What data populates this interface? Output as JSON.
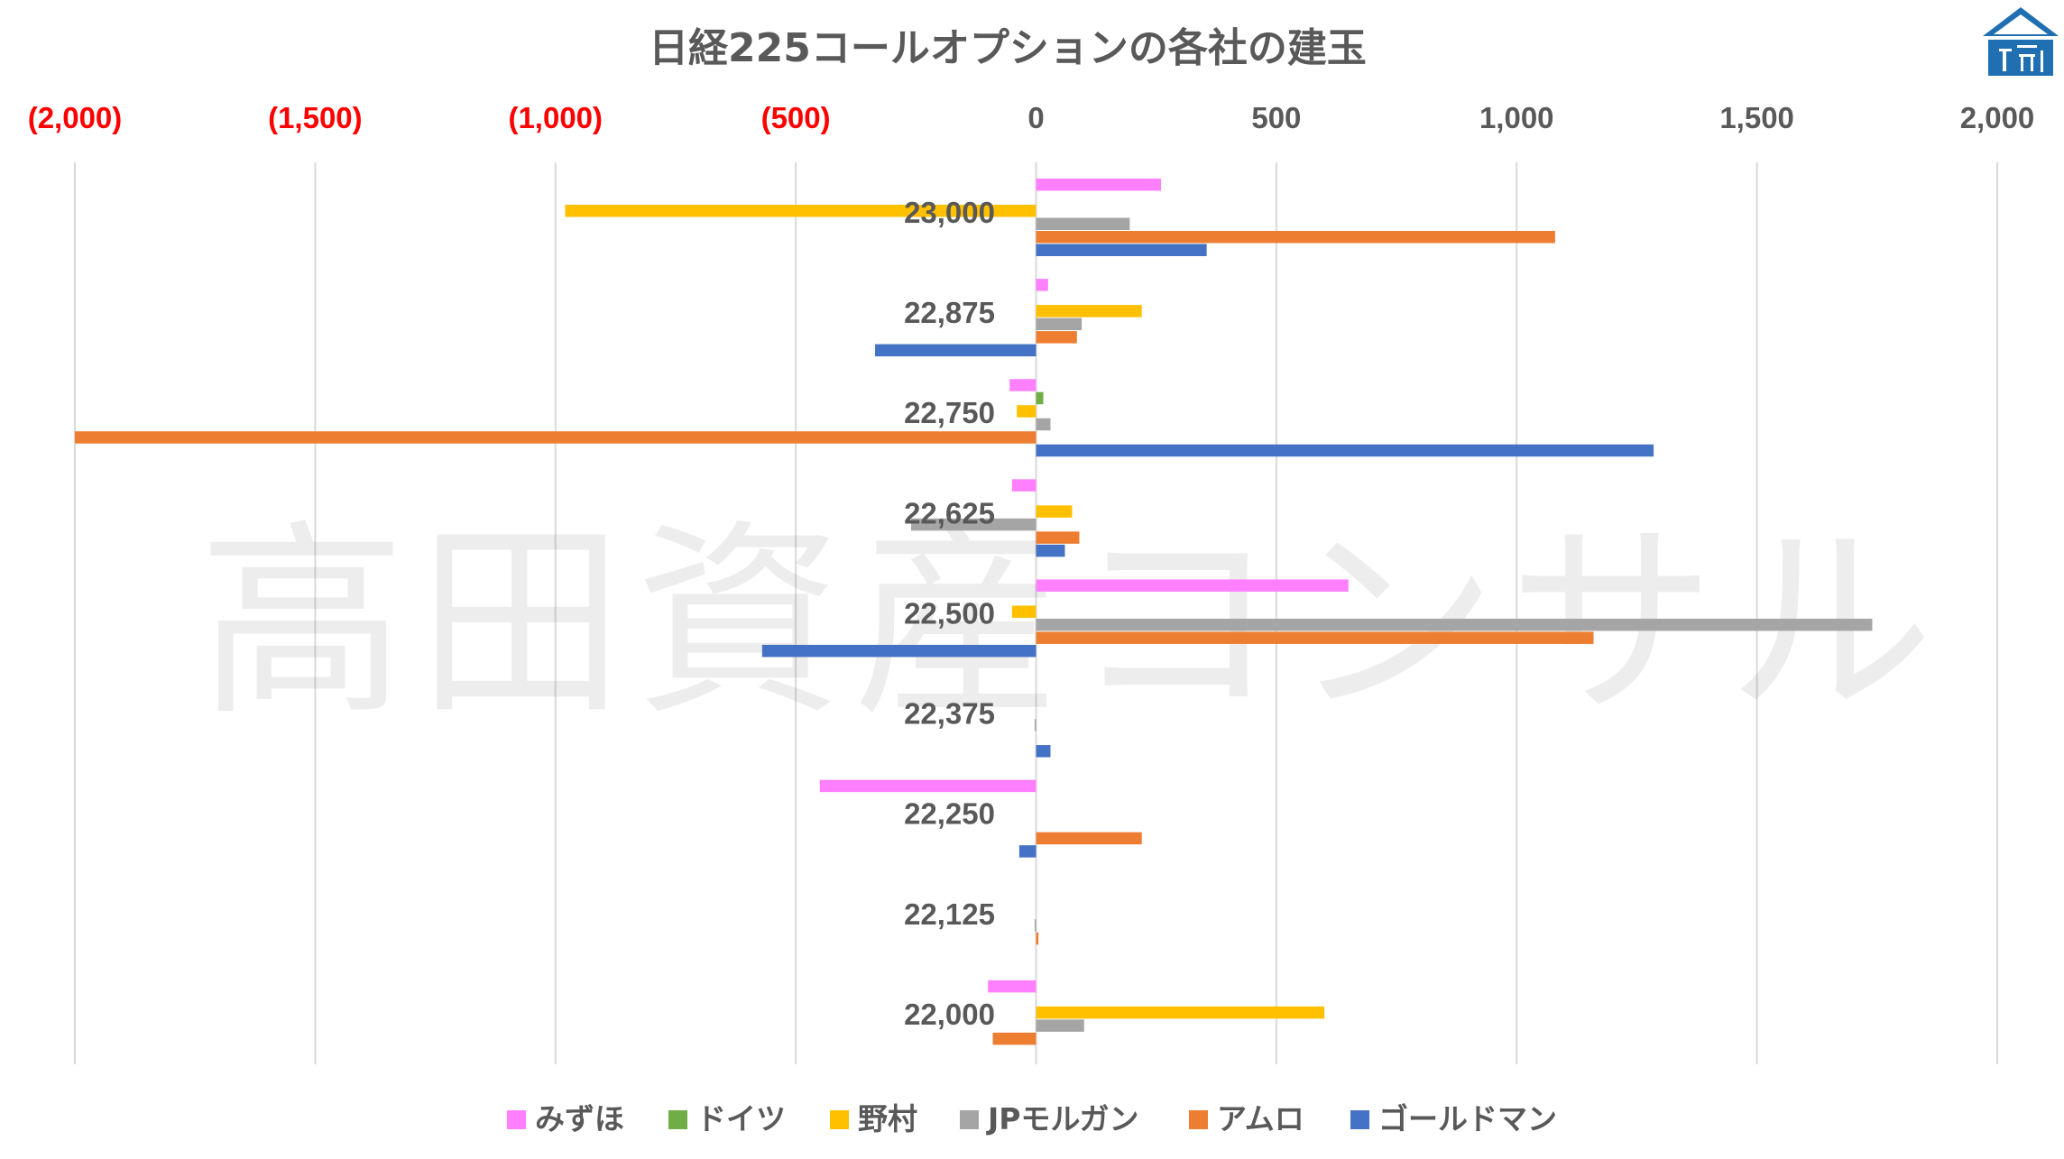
{
  "chart_data": {
    "type": "bar",
    "orientation": "horizontal",
    "title": "日経225コールオプションの各社の建玉",
    "watermark": "高田資産コンサル",
    "x_ticks": [
      {
        "value": -2000,
        "label": "(2,000)",
        "color": "#ff0000"
      },
      {
        "value": -1500,
        "label": "(1,500)",
        "color": "#ff0000"
      },
      {
        "value": -1000,
        "label": "(1,000)",
        "color": "#ff0000"
      },
      {
        "value": -500,
        "label": "(500)",
        "color": "#ff0000"
      },
      {
        "value": 0,
        "label": "0",
        "color": "#595959"
      },
      {
        "value": 500,
        "label": "500",
        "color": "#595959"
      },
      {
        "value": 1000,
        "label": "1,000",
        "color": "#595959"
      },
      {
        "value": 1500,
        "label": "1,500",
        "color": "#595959"
      },
      {
        "value": 2000,
        "label": "2,000",
        "color": "#595959"
      }
    ],
    "xlim": [
      -2000,
      2000
    ],
    "grid": true,
    "legend_position": "bottom",
    "categories": [
      "23,000",
      "22,875",
      "22,750",
      "22,625",
      "22,500",
      "22,375",
      "22,250",
      "22,125",
      "22,000"
    ],
    "series": [
      {
        "name": "みずほ",
        "color": "#ff80ff",
        "values": [
          260,
          25,
          -55,
          -50,
          650,
          0,
          -450,
          0,
          -100
        ]
      },
      {
        "name": "ドイツ",
        "color": "#70ad47",
        "values": [
          0,
          0,
          15,
          0,
          0,
          0,
          0,
          0,
          0
        ]
      },
      {
        "name": "野村",
        "color": "#ffc000",
        "values": [
          -980,
          220,
          -40,
          75,
          -50,
          0,
          0,
          0,
          600
        ]
      },
      {
        "name": "JPモルガン",
        "color": "#a5a5a5",
        "values": [
          195,
          95,
          30,
          -260,
          1740,
          -3,
          0,
          -3,
          100
        ]
      },
      {
        "name": "アムロ",
        "color": "#ed7d31",
        "values": [
          1080,
          85,
          -2000,
          90,
          1160,
          0,
          220,
          5,
          -90
        ]
      },
      {
        "name": "ゴールドマン",
        "color": "#4472c4",
        "values": [
          355,
          -335,
          1285,
          60,
          -570,
          30,
          -35,
          0,
          0
        ]
      }
    ]
  },
  "logo": {
    "name": "building-logo",
    "color": "#1f6fb2"
  }
}
